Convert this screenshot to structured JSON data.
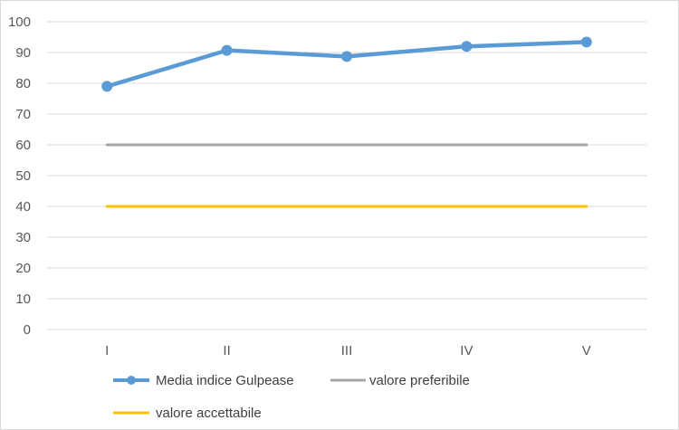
{
  "chart_data": {
    "type": "line",
    "categories": [
      "I",
      "II",
      "III",
      "IV",
      "V"
    ],
    "ylim": [
      0,
      100
    ],
    "yticks": [
      0,
      10,
      20,
      30,
      40,
      50,
      60,
      70,
      80,
      90,
      100
    ],
    "grid": true,
    "legend_position": "bottom",
    "series": [
      {
        "name": "Media indice Gulpease",
        "values": [
          79,
          90.7,
          88.7,
          92,
          93.4
        ],
        "color": "#5b9bd5",
        "markers": true
      },
      {
        "name": "valore preferibile",
        "values": [
          60,
          60,
          60,
          60,
          60
        ],
        "color": "#a5a5a5",
        "markers": false
      },
      {
        "name": "valore accettabile",
        "values": [
          40,
          40,
          40,
          40,
          40
        ],
        "color": "#ffc000",
        "markers": false
      }
    ]
  }
}
